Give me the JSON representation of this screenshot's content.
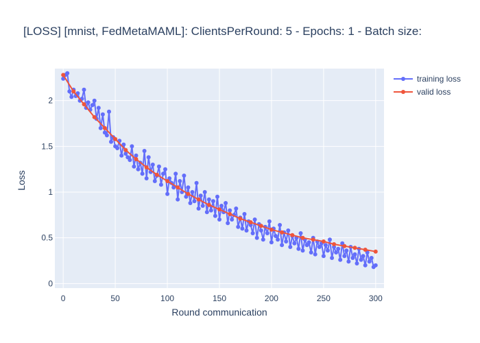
{
  "chart_data": {
    "type": "line",
    "title": "[LOSS] [mnist, FedMetaMAML]: ClientsPerRound: 5 - Epochs: 1 - Batch size:",
    "xlabel": "Round communication",
    "ylabel": "Loss",
    "xlim": [
      -8,
      308
    ],
    "ylim": [
      -0.05,
      2.35
    ],
    "xticks": [
      0,
      50,
      100,
      150,
      200,
      250,
      300
    ],
    "yticks": [
      0,
      0.5,
      1,
      1.5,
      2
    ],
    "ytick_labels": [
      "0",
      "0.5",
      "1",
      "1.5",
      "2"
    ],
    "grid": true,
    "legend_position": "top-right outside",
    "colors": {
      "plot_bg": "#e5ecf6",
      "grid": "#ffffff",
      "text": "#2a3f5f"
    },
    "series": [
      {
        "name": "training loss",
        "color": "#636efa",
        "x": [
          0,
          2,
          4,
          6,
          8,
          10,
          12,
          14,
          16,
          18,
          20,
          22,
          24,
          26,
          28,
          30,
          32,
          34,
          36,
          38,
          40,
          42,
          44,
          46,
          48,
          50,
          52,
          54,
          56,
          58,
          60,
          62,
          64,
          66,
          68,
          70,
          72,
          74,
          76,
          78,
          80,
          82,
          84,
          86,
          88,
          90,
          92,
          94,
          96,
          98,
          100,
          102,
          104,
          106,
          108,
          110,
          112,
          114,
          116,
          118,
          120,
          122,
          124,
          126,
          128,
          130,
          132,
          134,
          136,
          138,
          140,
          142,
          144,
          146,
          148,
          150,
          152,
          154,
          156,
          158,
          160,
          162,
          164,
          166,
          168,
          170,
          172,
          174,
          176,
          178,
          180,
          182,
          184,
          186,
          188,
          190,
          192,
          194,
          196,
          198,
          200,
          202,
          204,
          206,
          208,
          210,
          212,
          214,
          216,
          218,
          220,
          222,
          224,
          226,
          228,
          230,
          232,
          234,
          236,
          238,
          240,
          242,
          244,
          246,
          248,
          250,
          252,
          254,
          256,
          258,
          260,
          262,
          264,
          266,
          268,
          270,
          272,
          274,
          276,
          278,
          280,
          282,
          284,
          286,
          288,
          290,
          292,
          294,
          296,
          298,
          300
        ],
        "y": [
          2.24,
          2.28,
          2.3,
          2.1,
          2.04,
          2.12,
          2.05,
          2.08,
          2.0,
          2.02,
          2.12,
          1.92,
          1.98,
          1.9,
          1.95,
          2.0,
          1.8,
          1.92,
          1.7,
          1.85,
          1.65,
          1.62,
          1.88,
          1.55,
          1.6,
          1.5,
          1.48,
          1.56,
          1.4,
          1.52,
          1.42,
          1.38,
          1.35,
          1.5,
          1.28,
          1.4,
          1.25,
          1.32,
          1.2,
          1.45,
          1.15,
          1.38,
          1.22,
          1.3,
          1.12,
          1.18,
          1.28,
          1.08,
          1.2,
          1.25,
          0.98,
          1.15,
          1.1,
          1.05,
          1.2,
          0.92,
          1.12,
          1.0,
          1.18,
          0.95,
          1.05,
          0.88,
          1.0,
          0.9,
          1.1,
          0.82,
          0.96,
          0.85,
          1.0,
          0.78,
          0.92,
          0.8,
          0.9,
          0.74,
          0.95,
          0.7,
          0.85,
          0.78,
          0.88,
          0.66,
          0.8,
          0.7,
          0.75,
          0.82,
          0.62,
          0.72,
          0.6,
          0.76,
          0.58,
          0.68,
          0.64,
          0.55,
          0.7,
          0.5,
          0.65,
          0.58,
          0.48,
          0.62,
          0.55,
          0.68,
          0.45,
          0.6,
          0.52,
          0.48,
          0.64,
          0.42,
          0.56,
          0.46,
          0.58,
          0.4,
          0.52,
          0.44,
          0.5,
          0.38,
          0.55,
          0.36,
          0.48,
          0.42,
          0.45,
          0.34,
          0.5,
          0.32,
          0.46,
          0.4,
          0.44,
          0.3,
          0.42,
          0.36,
          0.48,
          0.28,
          0.4,
          0.34,
          0.38,
          0.26,
          0.44,
          0.3,
          0.36,
          0.24,
          0.4,
          0.28,
          0.32,
          0.22,
          0.38,
          0.26,
          0.3,
          0.2,
          0.34,
          0.24,
          0.28,
          0.18,
          0.2
        ]
      },
      {
        "name": "valid loss",
        "color": "#ef553b",
        "x": [
          0,
          10,
          20,
          30,
          40,
          50,
          60,
          70,
          80,
          90,
          100,
          110,
          120,
          130,
          140,
          150,
          160,
          170,
          180,
          190,
          200,
          210,
          220,
          230,
          240,
          250,
          260,
          270,
          280,
          290,
          300
        ],
        "y": [
          2.28,
          2.1,
          1.96,
          1.82,
          1.7,
          1.58,
          1.46,
          1.36,
          1.27,
          1.19,
          1.12,
          1.05,
          0.98,
          0.92,
          0.86,
          0.81,
          0.76,
          0.71,
          0.67,
          0.63,
          0.59,
          0.56,
          0.53,
          0.5,
          0.48,
          0.46,
          0.43,
          0.41,
          0.39,
          0.37,
          0.35
        ]
      }
    ]
  }
}
